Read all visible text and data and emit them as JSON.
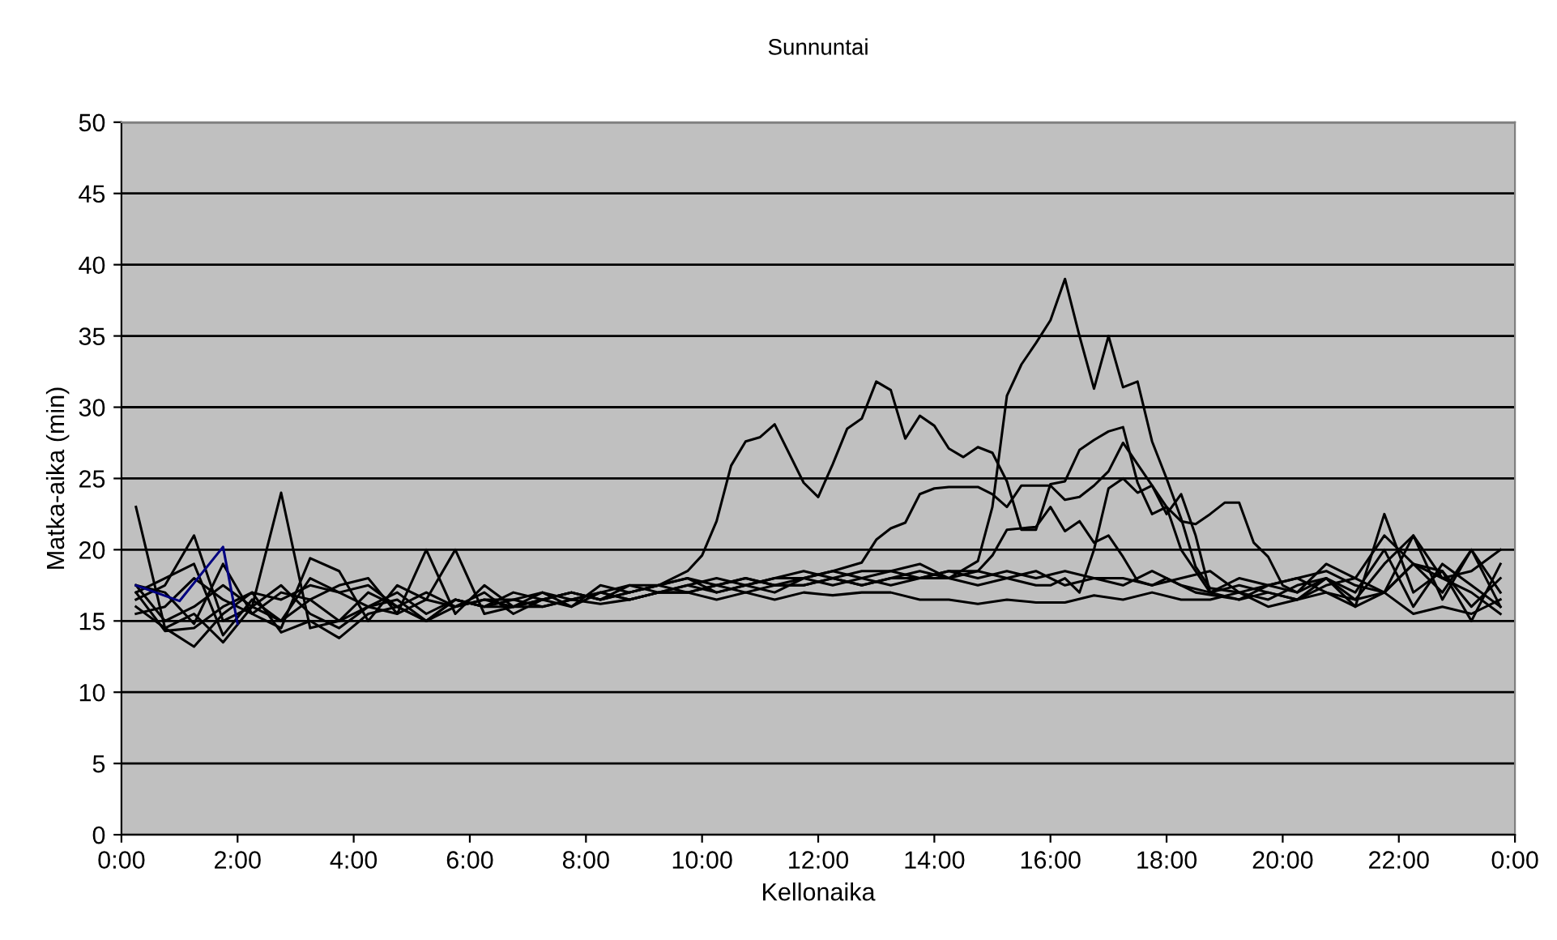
{
  "chart_data": {
    "type": "line",
    "title": "Sunnuntai",
    "xlabel": "Kellonaika",
    "ylabel": "Matka-aika (min)",
    "xlim": [
      0,
      24
    ],
    "xticks": [
      {
        "value": 0,
        "label": "0:00"
      },
      {
        "value": 2,
        "label": "2:00"
      },
      {
        "value": 4,
        "label": "4:00"
      },
      {
        "value": 6,
        "label": "6:00"
      },
      {
        "value": 8,
        "label": "8:00"
      },
      {
        "value": 10,
        "label": "10:00"
      },
      {
        "value": 12,
        "label": "12:00"
      },
      {
        "value": 14,
        "label": "14:00"
      },
      {
        "value": 16,
        "label": "16:00"
      },
      {
        "value": 18,
        "label": "18:00"
      },
      {
        "value": 20,
        "label": "20:00"
      },
      {
        "value": 22,
        "label": "22:00"
      },
      {
        "value": 24,
        "label": "0:00"
      }
    ],
    "ylim": [
      0,
      50
    ],
    "yticks": [
      0,
      5,
      10,
      15,
      20,
      25,
      30,
      35,
      40,
      45,
      50
    ],
    "grid": "y",
    "legend": false,
    "marker": "none",
    "line_style": "solid",
    "series": [
      {
        "color": "#000000",
        "x": [
          0.25,
          0.75,
          1.25,
          1.75,
          2.25,
          2.75,
          3.25,
          3.75,
          4.25,
          4.75,
          5.25,
          5.75,
          6.25,
          6.75,
          7.25,
          7.75,
          8.25,
          8.75,
          9.25,
          9.75,
          10.0,
          10.25,
          10.5,
          10.75,
          11.0,
          11.25,
          11.75,
          12.0,
          12.25,
          12.5,
          12.75,
          13.0,
          13.25,
          13.5,
          13.75,
          14.0,
          14.25,
          14.5,
          14.75,
          15.0,
          15.25,
          15.5,
          15.75,
          16.0,
          16.25,
          16.5,
          16.75,
          17.0,
          17.25,
          17.5,
          17.75,
          18.0,
          18.25,
          18.75,
          19.25,
          19.75,
          20.25,
          20.75,
          21.25,
          21.75,
          22.25,
          22.75,
          23.25,
          23.75
        ],
        "values": [
          23,
          14.5,
          15.5,
          13.5,
          16,
          17.5,
          15.5,
          14.5,
          16,
          17,
          15.5,
          16.5,
          16,
          16.5,
          17,
          16.5,
          17,
          17.5,
          17.5,
          18.5,
          19.6,
          22,
          25.9,
          27.6,
          27.9,
          28.8,
          24.7,
          23.7,
          26,
          28.5,
          29.2,
          31.8,
          31.2,
          27.8,
          29.4,
          28.7,
          27.1,
          26.5,
          27.2,
          26.8,
          24.8,
          21.4,
          21.4,
          24.6,
          24.8,
          27,
          27.7,
          28.3,
          28.6,
          24.7,
          22.5,
          23,
          20,
          17,
          16.5,
          17.5,
          18,
          17,
          16.5,
          19,
          21,
          18,
          17,
          15.5
        ]
      },
      {
        "color": "#000000",
        "x": [
          0.25,
          0.75,
          1.25,
          1.75,
          2.25,
          2.75,
          3.25,
          3.75,
          4.25,
          4.75,
          5.25,
          5.75,
          6.25,
          6.75,
          7.25,
          7.75,
          8.25,
          8.75,
          9.25,
          9.75,
          10.25,
          10.75,
          11.25,
          11.75,
          12.25,
          12.75,
          13.25,
          13.75,
          14.25,
          14.75,
          15.0,
          15.25,
          15.5,
          15.75,
          16.0,
          16.25,
          16.5,
          16.75,
          17.0,
          17.25,
          17.5,
          17.75,
          18.0,
          18.25,
          18.5,
          18.75,
          19.25,
          19.75,
          20.25,
          20.75,
          21.25,
          21.75,
          22.25,
          22.75,
          23.25,
          23.75
        ],
        "values": [
          16.5,
          17.5,
          21,
          15,
          16,
          24,
          14.5,
          15,
          16,
          15.5,
          16.5,
          20,
          15.5,
          16,
          16.5,
          17,
          16.5,
          17,
          17.5,
          17,
          17.5,
          18,
          17.5,
          17.5,
          18,
          17.5,
          18,
          18.5,
          18,
          19.2,
          23,
          30.8,
          33,
          34.5,
          36.1,
          39,
          35,
          31.3,
          35,
          31.4,
          31.8,
          27.6,
          25,
          22.2,
          18.8,
          17.3,
          17,
          16.5,
          17.5,
          18,
          17,
          20,
          16,
          19,
          17.5,
          16
        ]
      },
      {
        "color": "#000000",
        "x": [
          0.25,
          0.75,
          1.25,
          1.75,
          2.25,
          2.75,
          3.25,
          3.75,
          4.25,
          4.75,
          5.25,
          5.75,
          6.25,
          6.75,
          7.25,
          7.75,
          8.25,
          8.75,
          9.25,
          9.75,
          10.25,
          10.75,
          11.25,
          11.75,
          12.25,
          12.75,
          13.0,
          13.25,
          13.5,
          13.75,
          14.0,
          14.25,
          14.5,
          14.75,
          15.0,
          15.25,
          15.5,
          15.75,
          16.0,
          16.25,
          16.5,
          16.75,
          17.0,
          17.25,
          17.5,
          17.75,
          18.0,
          18.25,
          18.5,
          18.75,
          19.0,
          19.25,
          19.5,
          19.75,
          20.0,
          20.25,
          20.75,
          21.25,
          21.75,
          22.25,
          22.75,
          23.25,
          23.75
        ],
        "values": [
          17,
          18,
          19,
          14,
          16.5,
          15,
          18,
          17,
          16,
          16.5,
          15,
          16,
          16.5,
          16,
          16.5,
          17,
          16.5,
          17.5,
          17,
          17.5,
          18,
          17.5,
          18,
          18,
          18.5,
          19.1,
          20.7,
          21.5,
          21.9,
          23.9,
          24.3,
          24.4,
          24.4,
          24.4,
          23.9,
          23,
          24.5,
          24.5,
          24.5,
          23.5,
          23.7,
          24.5,
          25.5,
          27.5,
          26,
          24.5,
          23,
          22,
          21.8,
          22.5,
          23.3,
          23.3,
          20.5,
          19.5,
          17.5,
          17,
          18,
          16.5,
          17,
          19,
          18.5,
          16,
          18
        ]
      },
      {
        "color": "#000000",
        "x": [
          0.25,
          0.75,
          1.25,
          1.75,
          2.25,
          2.75,
          3.25,
          3.75,
          4.25,
          4.75,
          5.25,
          5.75,
          6.25,
          6.75,
          7.25,
          7.75,
          8.25,
          8.75,
          9.25,
          9.75,
          10.25,
          10.75,
          11.25,
          11.75,
          12.25,
          12.75,
          13.25,
          13.75,
          14.25,
          14.75,
          15.0,
          15.25,
          15.5,
          15.75,
          16.0,
          16.25,
          16.5,
          16.75,
          17.0,
          17.25,
          17.5,
          17.75,
          18.0,
          18.25,
          18.5,
          19.25,
          19.75,
          20.25,
          20.75,
          21.25,
          21.75,
          22.25,
          22.75,
          23.25,
          23.75
        ],
        "values": [
          16,
          14.5,
          13.2,
          15.5,
          17,
          16.5,
          17.5,
          17,
          17.5,
          16,
          17,
          16,
          16.5,
          16.5,
          16,
          16.5,
          17,
          16.5,
          17,
          17,
          17.5,
          17,
          17.5,
          17.5,
          18,
          17.5,
          18,
          18,
          18.5,
          18.5,
          19.6,
          21.4,
          21.5,
          21.6,
          23,
          21.3,
          22,
          20.5,
          21,
          19.5,
          17.8,
          17.5,
          18,
          17.5,
          17,
          16.5,
          17,
          16.5,
          17.5,
          18,
          21,
          19,
          17,
          20,
          16
        ]
      },
      {
        "color": "#000000",
        "x": [
          0.25,
          0.75,
          1.25,
          1.75,
          2.25,
          2.75,
          3.25,
          3.75,
          4.25,
          4.75,
          5.25,
          5.75,
          6.25,
          6.75,
          7.25,
          7.75,
          8.25,
          8.75,
          9.25,
          9.75,
          10.25,
          10.75,
          11.25,
          11.75,
          12.25,
          12.75,
          13.25,
          13.75,
          14.25,
          14.75,
          15.25,
          15.75,
          16.0,
          16.25,
          16.5,
          16.75,
          17.0,
          17.25,
          17.5,
          17.75,
          18.0,
          18.25,
          18.5,
          18.75,
          19.25,
          19.75,
          20.25,
          20.75,
          21.25,
          21.75,
          22.25,
          22.75,
          23.25,
          23.75
        ],
        "values": [
          17.5,
          15,
          16,
          17.5,
          16,
          15,
          16.5,
          15,
          17,
          16,
          15,
          16.5,
          16,
          17,
          16.5,
          16,
          17,
          16.5,
          17,
          17.5,
          17,
          17.5,
          17,
          18,
          17.5,
          18,
          17.5,
          18,
          18,
          17.5,
          18,
          17.5,
          17.5,
          18,
          17,
          20,
          24.3,
          25,
          24,
          24.5,
          22.5,
          23.9,
          21,
          17,
          17.5,
          17,
          16.5,
          18,
          16,
          22.5,
          17,
          18.5,
          15,
          19
        ]
      },
      {
        "color": "#000000",
        "x": [
          0.25,
          0.75,
          1.25,
          1.75,
          2.25,
          2.75,
          3.25,
          3.75,
          4.25,
          4.75,
          5.25,
          5.75,
          6.25,
          6.75,
          7.25,
          7.75,
          8.25,
          8.75,
          9.25,
          9.75,
          10.25,
          10.75,
          11.25,
          11.75,
          12.25,
          12.75,
          13.25,
          13.75,
          14.25,
          14.75,
          15.25,
          15.75,
          16.25,
          16.75,
          17.25,
          17.75,
          18.25,
          18.75,
          19.25,
          19.75,
          20.25,
          20.75,
          21.25,
          21.75,
          22.25,
          22.75,
          23.25,
          23.75
        ],
        "values": [
          17,
          14.3,
          14.5,
          16,
          17,
          14.2,
          15,
          13.8,
          15.5,
          16,
          15,
          16.5,
          16,
          16,
          16,
          16.5,
          16.2,
          16.5,
          17,
          17,
          16.5,
          17,
          16.5,
          17,
          16.8,
          17,
          17,
          16.5,
          16.5,
          16.2,
          16.5,
          16.3,
          16.3,
          16.8,
          16.5,
          17,
          16.5,
          16.5,
          17,
          16,
          16.5,
          17,
          16,
          17,
          15.5,
          16,
          15.5,
          16.5
        ]
      },
      {
        "color": "#000000",
        "x": [
          0.25,
          0.75,
          1.25,
          1.75,
          2.25,
          2.75,
          3.25,
          3.75,
          4.25,
          4.75,
          5.25,
          5.75,
          6.25,
          6.75,
          7.25,
          7.75,
          8.25,
          8.75,
          9.25,
          9.75,
          10.25,
          10.75,
          11.25,
          11.75,
          12.25,
          12.75,
          13.25,
          13.75,
          14.25,
          14.75,
          15.25,
          15.75,
          16.25,
          16.75,
          17.25,
          17.75,
          18.25,
          18.75,
          19.25,
          19.75,
          20.25,
          20.75,
          21.25,
          21.75,
          22.25,
          22.75,
          23.25,
          23.75
        ],
        "values": [
          17.5,
          17,
          14.8,
          19,
          15.5,
          14.5,
          19.4,
          18.5,
          15,
          17.5,
          16.5,
          16,
          17,
          15.5,
          16.5,
          17,
          16.5,
          17,
          17.5,
          18,
          17,
          17.5,
          18,
          18.5,
          18,
          18.5,
          18.5,
          18,
          18.5,
          18,
          18.5,
          18,
          18.5,
          18,
          18,
          17.5,
          18,
          18.5,
          17,
          17.5,
          17,
          19,
          18,
          17,
          21,
          16.5,
          20,
          17
        ]
      },
      {
        "color": "#000000",
        "x": [
          0.25,
          0.75,
          1.25,
          1.75,
          2.25,
          2.75,
          3.25,
          3.75,
          4.25,
          4.75,
          5.25,
          5.75,
          6.25,
          6.75,
          7.25,
          7.75,
          8.25,
          8.75,
          9.25,
          9.75,
          10.25,
          10.75,
          11.25,
          11.75,
          12.25,
          12.75,
          13.25,
          13.75,
          14.25,
          14.75,
          15.25,
          15.75,
          16.25,
          16.75,
          17.25,
          17.75,
          18.25,
          18.75,
          19.25,
          19.75,
          20.25,
          20.75,
          21.25,
          21.75,
          22.25,
          22.75,
          23.25,
          23.75
        ],
        "values": [
          15.5,
          16,
          18,
          16.5,
          15.5,
          17,
          16.5,
          17.5,
          18,
          15.5,
          20,
          15.5,
          17.5,
          16,
          17,
          16,
          17.5,
          17,
          17.5,
          18,
          17.5,
          18,
          17.5,
          18,
          18.5,
          18,
          18.5,
          19,
          18,
          18.5,
          18,
          18.5,
          17.5,
          18,
          17.5,
          18.5,
          17.5,
          17,
          18,
          17.5,
          18,
          18.5,
          17.5,
          17,
          19,
          18,
          18.5,
          20
        ]
      },
      {
        "color": "#000080",
        "x": [
          0.25,
          1.0,
          1.75,
          2.0
        ],
        "values": [
          17.5,
          16.4,
          20.2,
          14.8
        ]
      }
    ]
  }
}
